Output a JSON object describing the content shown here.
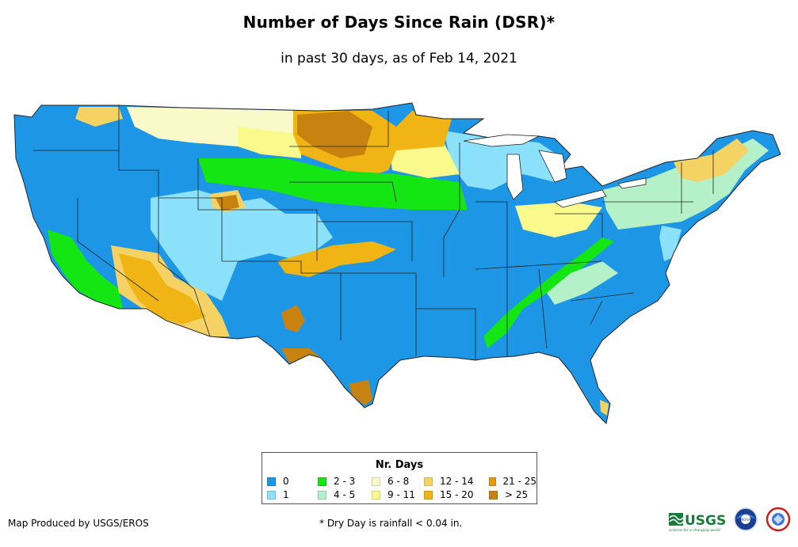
{
  "title": "Number of Days Since Rain (DSR)*",
  "subtitle": "in past 30 days, as of Feb 14, 2021",
  "legend": {
    "title": "Nr. Days",
    "items": [
      {
        "label": "0",
        "color": "#1e96e6"
      },
      {
        "label": "1",
        "color": "#8ce1fa"
      },
      {
        "label": "2 - 3",
        "color": "#14e614"
      },
      {
        "label": "4 - 5",
        "color": "#b4f0c8"
      },
      {
        "label": "6 - 8",
        "color": "#fafac8"
      },
      {
        "label": "9 - 11",
        "color": "#fafa8c"
      },
      {
        "label": "12 - 14",
        "color": "#f5d264"
      },
      {
        "label": "15 - 20",
        "color": "#f0b414"
      },
      {
        "label": "21 - 25",
        "color": "#e69b0f"
      },
      {
        "label": "> 25",
        "color": "#c8820f"
      }
    ]
  },
  "footer": {
    "credit": "Map Produced by USGS/EROS",
    "footnote": "* Dry Day is rainfall < 0.04 in.",
    "usgs_logo_text": "USGS",
    "usgs_tagline": "science for a changing world",
    "noaa_logo_text": "NOAA"
  }
}
